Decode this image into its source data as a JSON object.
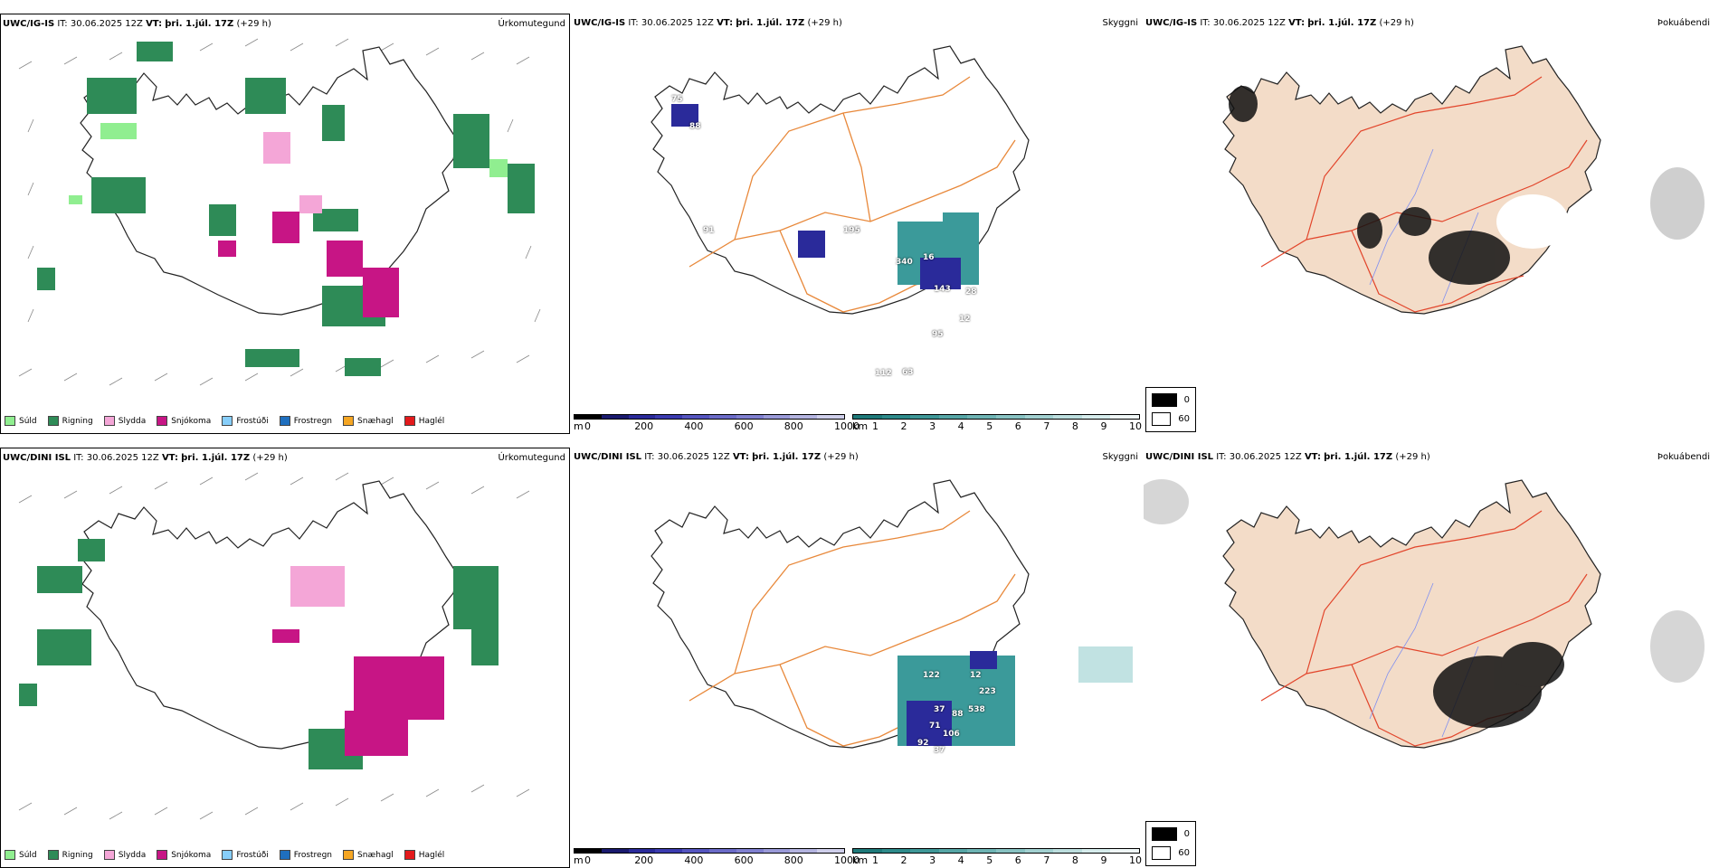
{
  "rows": [
    {
      "model": "UWC/IG-IS",
      "it_label": "IT:",
      "it_value": "30.06.2025 12Z",
      "vt_label": "VT:",
      "vt_value": "þri. 1.júl. 17Z",
      "lead": "(+29 h)"
    },
    {
      "model": "UWC/DINI ISL",
      "it_label": "IT:",
      "it_value": "30.06.2025 12Z",
      "vt_label": "VT:",
      "vt_value": "þri. 1.júl. 17Z",
      "lead": "(+29 h)"
    }
  ],
  "panel_titles": {
    "precip_type": "Úrkomutegund",
    "visibility": "Skyggni",
    "fog": "Þokuábendi"
  },
  "precip_legend": [
    {
      "label": "Súld",
      "color": "#90ee90"
    },
    {
      "label": "Rigning",
      "color": "#2e8b57"
    },
    {
      "label": "Slydda",
      "color": "#f4a6d7"
    },
    {
      "label": "Snjókoma",
      "color": "#c71585"
    },
    {
      "label": "Frostúði",
      "color": "#87cefa"
    },
    {
      "label": "Frostregn",
      "color": "#1f6fbf"
    },
    {
      "label": "Snæhagl",
      "color": "#f5a623"
    },
    {
      "label": "Haglél",
      "color": "#e31a1c"
    }
  ],
  "cbar_m": {
    "unit": "m",
    "ticks": [
      "0",
      "200",
      "400",
      "600",
      "800",
      "1000"
    ],
    "colors": [
      "#000000",
      "#1a1a6e",
      "#2a2a9a",
      "#3b3bb0",
      "#5555c0",
      "#6b6bc8",
      "#8080d0",
      "#9a9ad8",
      "#b4b4e0",
      "#cfcfeb"
    ]
  },
  "cbar_km": {
    "unit": "km",
    "ticks": [
      "1",
      "2",
      "3",
      "4",
      "5",
      "6",
      "7",
      "8",
      "9",
      "10"
    ],
    "colors": [
      "#1f7a7a",
      "#2e8b8b",
      "#3f9898",
      "#56a6a6",
      "#6eb4b4",
      "#88c2c2",
      "#a2d0d0",
      "#bcdede",
      "#d6ecec",
      "#f0f8f8"
    ]
  },
  "fog_legend": [
    {
      "value": "0",
      "color": "#000000"
    },
    {
      "value": "60",
      "color": "#ffffff"
    }
  ],
  "visibility_labels_top": [
    "75",
    "88",
    "91",
    "195",
    "340",
    "16",
    "143",
    "28",
    "12",
    "95",
    "63",
    "112"
  ],
  "visibility_labels_bottom": [
    "122",
    "12",
    "223",
    "37",
    "88",
    "538",
    "71",
    "106",
    "92",
    "37"
  ]
}
